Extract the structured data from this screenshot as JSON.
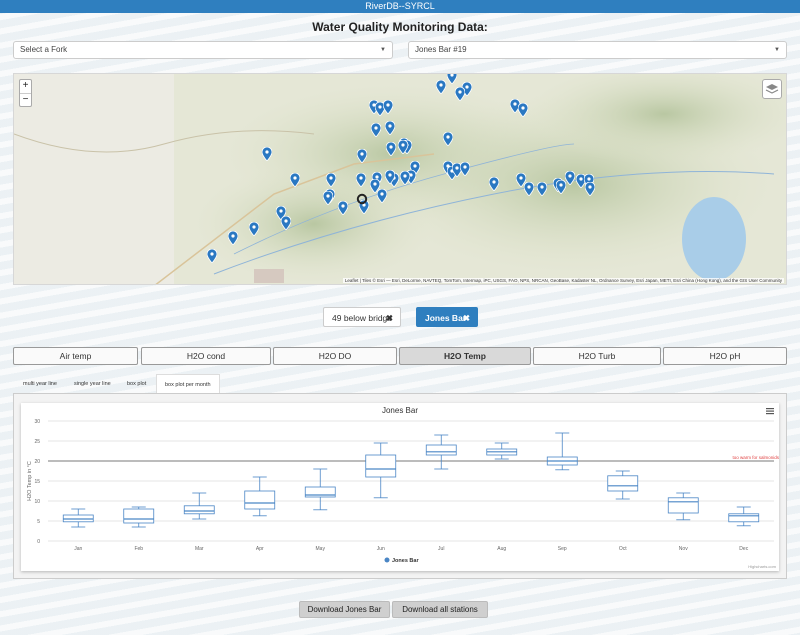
{
  "app": {
    "title": "RiverDB--SYRCL"
  },
  "page": {
    "title": "Water Quality Monitoring Data:"
  },
  "filters": {
    "fork_select": {
      "value": "Select a Fork"
    },
    "station_select": {
      "value": "Jones Bar #19"
    }
  },
  "map": {
    "zoom_in": "+",
    "zoom_out": "−",
    "attribution": "Leaflet | Tiles © Esri — Esri, DeLorme, NAVTEQ, TomTom, Intermap, iPC, USGS, FAO, NPS, NRCAN, GeoBase, Kadaster NL, Ordnance Survey, Esri Japan, METI, Esri China (Hong Kong), and the GIS User Community",
    "marker_color": "#2a78c2",
    "selected_marker_color": "#222222"
  },
  "selected_stations": [
    {
      "label": "49 below bridge",
      "remove": "✖"
    },
    {
      "label": "Jones Bar",
      "remove": "✖"
    }
  ],
  "parameter_tabs": [
    {
      "label": "Air temp"
    },
    {
      "label": "H2O cond"
    },
    {
      "label": "H2O DO"
    },
    {
      "label": "H2O Temp"
    },
    {
      "label": "H2O Turb"
    },
    {
      "label": "H2O pH"
    }
  ],
  "active_parameter": "H2O Temp",
  "view_tabs": [
    {
      "label": "multi year line"
    },
    {
      "label": "single year line"
    },
    {
      "label": "box plot"
    },
    {
      "label": "box plot per month"
    }
  ],
  "active_view": "box plot per month",
  "chart_data": {
    "type": "boxplot",
    "title": "Jones Bar",
    "ylabel": "H2O Temp in °C",
    "ylim": [
      0,
      30
    ],
    "yticks": [
      0,
      5,
      10,
      15,
      20,
      25,
      30
    ],
    "categories": [
      "Jan",
      "Feb",
      "Mar",
      "Apr",
      "May",
      "Jun",
      "Jul",
      "Aug",
      "Sep",
      "Oct",
      "Nov",
      "Dec"
    ],
    "series": [
      {
        "name": "Jones Bar",
        "color": "#4a86c5",
        "boxes": [
          {
            "low": 3.5,
            "q1": 4.8,
            "median": 5.5,
            "q3": 6.5,
            "high": 8.0
          },
          {
            "low": 3.5,
            "q1": 4.5,
            "median": 5.5,
            "q3": 8.0,
            "high": 8.5
          },
          {
            "low": 5.5,
            "q1": 6.8,
            "median": 7.5,
            "q3": 8.8,
            "high": 12.0
          },
          {
            "low": 6.3,
            "q1": 8.0,
            "median": 9.5,
            "q3": 12.5,
            "high": 16.0
          },
          {
            "low": 7.8,
            "q1": 11.0,
            "median": 11.5,
            "q3": 13.5,
            "high": 18.0
          },
          {
            "low": 10.8,
            "q1": 16.0,
            "median": 18.0,
            "q3": 21.5,
            "high": 24.5
          },
          {
            "low": 18.0,
            "q1": 21.5,
            "median": 22.3,
            "q3": 24.0,
            "high": 26.5
          },
          {
            "low": 20.5,
            "q1": 21.5,
            "median": 22.3,
            "q3": 23.0,
            "high": 24.5
          },
          {
            "low": 17.8,
            "q1": 19.0,
            "median": 20.0,
            "q3": 21.0,
            "high": 27.0
          },
          {
            "low": 10.5,
            "q1": 12.5,
            "median": 13.8,
            "q3": 16.3,
            "high": 17.5
          },
          {
            "low": 5.3,
            "q1": 7.0,
            "median": 9.8,
            "q3": 10.8,
            "high": 12.0
          },
          {
            "low": 3.8,
            "q1": 4.8,
            "median": 6.3,
            "q3": 6.8,
            "high": 8.5
          }
        ]
      }
    ],
    "threshold": {
      "value": 20,
      "label": "too warm for salmonids",
      "color": "#e04040"
    },
    "legend": "bottom-center",
    "credits": "Highcharts.com",
    "grid": true
  },
  "downloads": {
    "station_button": "Download Jones Bar",
    "all_button": "Download all stations"
  }
}
